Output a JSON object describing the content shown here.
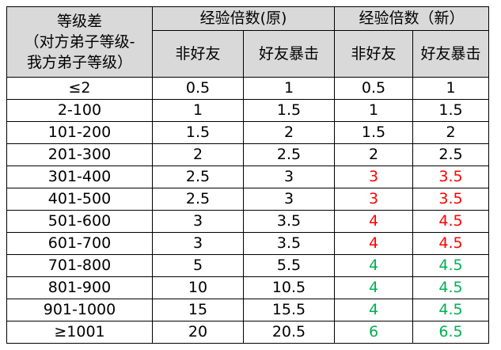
{
  "table": {
    "header": {
      "level_diff": [
        "等级差",
        "（对方弟子等级-",
        "我方弟子等级）"
      ],
      "old_group": "经验倍数(原)",
      "new_group": "经验倍数（新）",
      "sub": [
        "非好友",
        "好友暴击",
        "非好友",
        "好友暴击"
      ]
    },
    "rows": [
      {
        "cells": [
          "≤2",
          "0.5",
          "1",
          "0.5",
          "1"
        ],
        "new_color": "#000000"
      },
      {
        "cells": [
          "2-100",
          "1",
          "1.5",
          "1",
          "1.5"
        ],
        "new_color": "#000000"
      },
      {
        "cells": [
          "101-200",
          "1.5",
          "2",
          "1.5",
          "2"
        ],
        "new_color": "#000000"
      },
      {
        "cells": [
          "201-300",
          "2",
          "2.5",
          "2",
          "2.5"
        ],
        "new_color": "#000000"
      },
      {
        "cells": [
          "301-400",
          "2.5",
          "3",
          "3",
          "3.5"
        ],
        "new_color": "#ff0000"
      },
      {
        "cells": [
          "401-500",
          "2.5",
          "3",
          "3",
          "3.5"
        ],
        "new_color": "#ff0000"
      },
      {
        "cells": [
          "501-600",
          "3",
          "3.5",
          "4",
          "4.5"
        ],
        "new_color": "#ff0000"
      },
      {
        "cells": [
          "601-700",
          "3",
          "3.5",
          "4",
          "4.5"
        ],
        "new_color": "#ff0000"
      },
      {
        "cells": [
          "701-800",
          "5",
          "5.5",
          "4",
          "4.5"
        ],
        "new_color": "#00b050"
      },
      {
        "cells": [
          "801-900",
          "10",
          "10.5",
          "4",
          "4.5"
        ],
        "new_color": "#00b050"
      },
      {
        "cells": [
          "901-1000",
          "15",
          "15.5",
          "4",
          "4.5"
        ],
        "new_color": "#00b050"
      },
      {
        "cells": [
          "≥1001",
          "20",
          "20.5",
          "6",
          "6.5"
        ],
        "new_color": "#00b050"
      }
    ]
  }
}
